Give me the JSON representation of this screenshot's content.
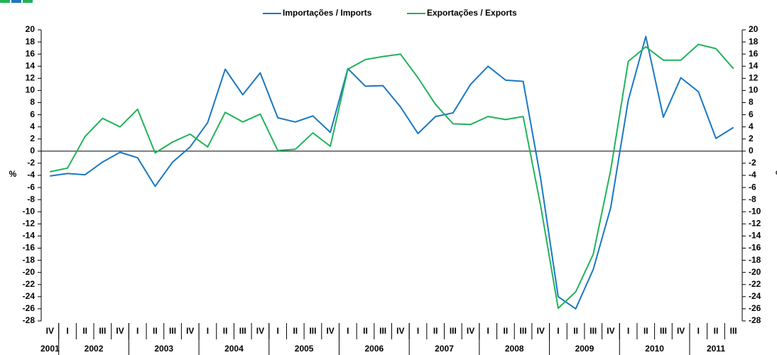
{
  "chart_data": {
    "type": "line",
    "categories": [
      "IV",
      "I",
      "II",
      "III",
      "IV",
      "I",
      "II",
      "III",
      "IV",
      "I",
      "II",
      "III",
      "IV",
      "I",
      "II",
      "III",
      "IV",
      "I",
      "II",
      "III",
      "IV",
      "I",
      "II",
      "III",
      "IV",
      "I",
      "II",
      "III",
      "IV",
      "I",
      "II",
      "III",
      "IV",
      "I",
      "II",
      "III",
      "IV",
      "I",
      "II",
      "III"
    ],
    "years": [
      "2001",
      "2002",
      "2003",
      "2004",
      "2005",
      "2006",
      "2007",
      "2008",
      "2009",
      "2010",
      "2011"
    ],
    "series": [
      {
        "name": "Importações / Imports",
        "color": "#1a78c2",
        "values": [
          -4.1,
          -3.7,
          -3.9,
          -1.8,
          -0.2,
          -1.1,
          -5.8,
          -1.8,
          0.7,
          4.7,
          13.5,
          9.3,
          12.9,
          5.5,
          4.8,
          5.8,
          3.1,
          13.6,
          10.7,
          10.8,
          7.3,
          2.9,
          5.7,
          6.3,
          11.0,
          14.0,
          11.7,
          11.5,
          -4.5,
          -24.0,
          -26.0,
          -19.5,
          -9.3,
          8.4,
          18.9,
          5.6,
          12.1,
          9.8,
          2.1,
          3.9
        ]
      },
      {
        "name": "Exportações / Exports",
        "color": "#21b35a",
        "values": [
          -3.4,
          -2.8,
          2.4,
          5.4,
          4.0,
          6.9,
          -0.3,
          1.5,
          2.8,
          0.7,
          6.4,
          4.8,
          6.1,
          0.1,
          0.3,
          3.0,
          0.8,
          13.5,
          15.1,
          15.6,
          16.0,
          12.1,
          7.7,
          4.5,
          4.4,
          5.7,
          5.2,
          5.7,
          -9.0,
          -25.9,
          -23.2,
          -17.0,
          -3.1,
          14.8,
          17.2,
          15.0,
          15.0,
          17.6,
          16.9,
          13.6
        ]
      }
    ],
    "y_label": "%",
    "y2_label": "%",
    "ylim": [
      -28,
      20
    ],
    "yticks": [
      -28,
      -26,
      -24,
      -22,
      -20,
      -18,
      -16,
      -14,
      -12,
      -10,
      -8,
      -6,
      -4,
      -2,
      0,
      2,
      4,
      6,
      8,
      10,
      12,
      14,
      16,
      18,
      20
    ],
    "y2lim": [
      -28,
      20
    ],
    "y2ticks": [
      -28,
      -26,
      -24,
      -22,
      -20,
      -18,
      -16,
      -14,
      -12,
      -10,
      -8,
      -6,
      -4,
      -2,
      0,
      2,
      4,
      6,
      8,
      10,
      12,
      14,
      16,
      18,
      20
    ]
  }
}
